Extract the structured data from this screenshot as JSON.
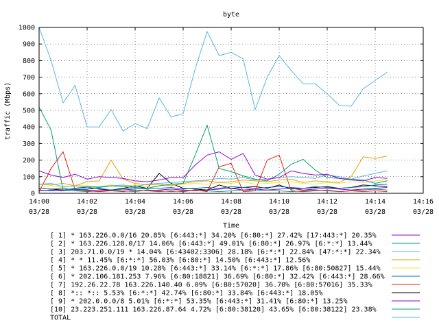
{
  "chart_data": {
    "type": "line",
    "title": "byte",
    "xlabel": "Time",
    "ylabel": "traffic (Mbps)",
    "ylim": [
      0,
      1000
    ],
    "yticks": [
      "0",
      "100",
      "200",
      "300",
      "400",
      "500",
      "600",
      "700",
      "800",
      "900",
      "1000"
    ],
    "xticks": [
      {
        "time": "14:00",
        "date": "03/28"
      },
      {
        "time": "14:02",
        "date": "03/28"
      },
      {
        "time": "14:04",
        "date": "03/28"
      },
      {
        "time": "14:06",
        "date": "03/28"
      },
      {
        "time": "14:08",
        "date": "03/28"
      },
      {
        "time": "14:10",
        "date": "03/28"
      },
      {
        "time": "14:12",
        "date": "03/28"
      },
      {
        "time": "14:14",
        "date": "03/28"
      },
      {
        "time": "14:16",
        "date": "03/28"
      }
    ],
    "xlim_minutes": [
      0,
      16
    ],
    "grid": true,
    "x_minutes": [
      0,
      0.5,
      1,
      1.5,
      2,
      2.5,
      3,
      3.5,
      4,
      4.5,
      5,
      5.5,
      6,
      6.5,
      7,
      7.5,
      8,
      8.5,
      9,
      9.5,
      10,
      10.5,
      11,
      11.5,
      12,
      12.5,
      13,
      13.5,
      14,
      14.5
    ],
    "series": [
      {
        "name": "[ 1] * 163.226.0.0/16 20.85%  [6:443:*] 34.20% [6:80:*] 27.42% [17:443:*] 20.35%",
        "color": "#9400d3",
        "values": [
          135,
          110,
          95,
          115,
          85,
          100,
          95,
          90,
          75,
          70,
          80,
          95,
          95,
          170,
          230,
          250,
          205,
          240,
          110,
          85,
          95,
          135,
          120,
          110,
          115,
          90,
          80,
          75,
          95,
          90
        ]
      },
      {
        "name": "[ 2] * 163.226.128.0/17 14.06%  [6:443:*] 49.01% [6:80:*] 26.97% [6:*:*] 13.44%",
        "color": "#009e73",
        "values": [
          520,
          380,
          20,
          30,
          40,
          35,
          45,
          40,
          35,
          30,
          45,
          55,
          60,
          230,
          410,
          150,
          130,
          105,
          85,
          75,
          115,
          175,
          205,
          140,
          95,
          90,
          85,
          80,
          60,
          75
        ]
      },
      {
        "name": "[ 3] 203.71.0.0/19 * 14.04%  [6:43402:3306] 28.18% [6:*:*] 22.84% [47:*:*] 22.34%",
        "color": "#56b4e9",
        "values": [
          55,
          60,
          40,
          45,
          35,
          40,
          45,
          50,
          40,
          55,
          60,
          65,
          70,
          75,
          80,
          90,
          85,
          95,
          80,
          85,
          95,
          100,
          95,
          90,
          110,
          100,
          85,
          105,
          120,
          135
        ]
      },
      {
        "name": "[ 4] * * 11.45%  [6:*:*] 56.03% [6:80:*] 14.50% [6:443:*] 12.56%",
        "color": "#e69f00",
        "values": [
          55,
          50,
          60,
          45,
          70,
          75,
          200,
          85,
          60,
          50,
          55,
          45,
          60,
          70,
          75,
          65,
          70,
          80,
          75,
          70,
          80,
          85,
          65,
          75,
          70,
          65,
          100,
          220,
          210,
          225
        ]
      },
      {
        "name": "[ 5] * 163.226.0.0/19 10.28%  [6:443:*] 33.14% [6:*:*] 17.86% [6:80:50827] 15.44%",
        "color": "#f0e442",
        "values": [
          40,
          45,
          35,
          50,
          45,
          40,
          50,
          45,
          50,
          40,
          45,
          50,
          55,
          60,
          55,
          65,
          60,
          70,
          55,
          60,
          65,
          70,
          60,
          55,
          65,
          60,
          70,
          65,
          75,
          80
        ]
      },
      {
        "name": "[ 6] * 202.106.181.253 7.96%  [6:80:18821] 36.69% [6:80:*] 32.42% [6:443:*] 28.66%",
        "color": "#0072b2",
        "values": [
          30,
          25,
          30,
          20,
          25,
          30,
          20,
          25,
          30,
          25,
          30,
          35,
          25,
          30,
          35,
          30,
          40,
          35,
          30,
          35,
          40,
          35,
          30,
          40,
          35,
          30,
          35,
          40,
          50,
          55
        ]
      },
      {
        "name": "[ 7] 192.26.22.78 163.226.140.40 6.09%  [6:80:57020] 36.70% [6:80:57016] 35.33%",
        "color": "#e51e10",
        "values": [
          10,
          150,
          250,
          20,
          15,
          10,
          15,
          10,
          20,
          15,
          10,
          15,
          10,
          20,
          10,
          160,
          180,
          10,
          15,
          200,
          230,
          15,
          10,
          15,
          20,
          10,
          15,
          10,
          15,
          10
        ]
      },
      {
        "name": "[ 8] *:: *:: 5.53%  [6:*:*] 42.74% [6:80:*] 33.84% [6:443:*] 18.05%",
        "color": "#000000",
        "values": [
          30,
          25,
          20,
          30,
          35,
          25,
          20,
          30,
          45,
          30,
          120,
          60,
          30,
          25,
          20,
          50,
          30,
          35,
          40,
          30,
          50,
          25,
          30,
          35,
          40,
          30,
          35,
          50,
          45,
          40
        ]
      },
      {
        "name": "[ 9] * 202.0.0.0/8 5.01%  [6:*:*] 53.35% [6:443:*] 31.41% [6:80:*] 13.25%",
        "color": "#9400d3",
        "values": [
          15,
          20,
          15,
          25,
          20,
          15,
          20,
          25,
          20,
          15,
          20,
          25,
          20,
          15,
          20,
          25,
          30,
          20,
          25,
          20,
          25,
          30,
          20,
          25,
          30,
          25,
          20,
          25,
          30,
          35
        ]
      },
      {
        "name": "[10] 23.223.251.111 163.226.87.64 4.72%  [6:80:38120] 43.65% [6:80:38122] 23.38%",
        "color": "#009e73",
        "values": [
          20,
          15,
          20,
          15,
          10,
          15,
          20,
          15,
          10,
          20,
          15,
          10,
          15,
          20,
          15,
          10,
          15,
          20,
          15,
          20,
          15,
          10,
          15,
          20,
          15,
          10,
          15,
          20,
          25,
          20
        ]
      },
      {
        "name": "TOTAL",
        "color": "#56b4e9",
        "values": [
          1000,
          800,
          545,
          650,
          400,
          400,
          505,
          375,
          420,
          390,
          575,
          460,
          480,
          750,
          975,
          830,
          850,
          810,
          505,
          700,
          830,
          740,
          660,
          660,
          600,
          530,
          525,
          630,
          680,
          730
        ]
      }
    ]
  }
}
